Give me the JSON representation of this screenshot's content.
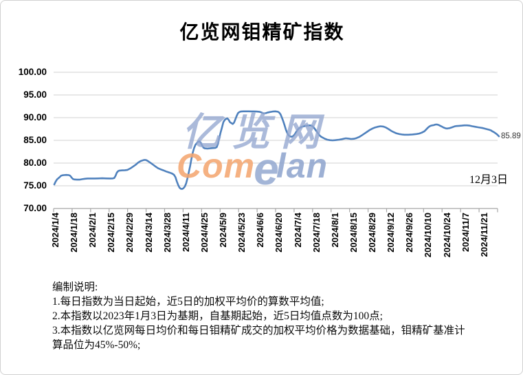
{
  "title": "亿览网钼精矿指数",
  "annotation": {
    "date_label": "12月3日"
  },
  "watermark": {
    "cjk": "亿览网",
    "com": "Com",
    "e": "e",
    "lan": "lan"
  },
  "notes": {
    "heading": "编制说明:",
    "lines": [
      "1.每日指数为当日起始，近5日的加权平均价的算数平均值;",
      "2.本指数以2023年1月3日为基期，自基期起始，近5日均值点数为100点;",
      "3.本指数以亿览网每日均价和每日钼精矿成交的加权平均价格为数据基础，钼精矿基准计算品位为45%-50%;"
    ]
  },
  "colors": {
    "line": "#4f81bd",
    "grid": "#d9d9d9",
    "axis": "#a6a6a6",
    "watermark_blue": "#93a7cf",
    "watermark_orange": "#f4a671"
  },
  "chart_data": {
    "type": "line",
    "title": "亿览网钼精矿指数",
    "xlabel": "",
    "ylabel": "",
    "ylim": [
      70,
      100
    ],
    "ytick_interval": 5,
    "ytick_labels": [
      "100.00",
      "95.00",
      "90.00",
      "85.00",
      "80.00",
      "75.00",
      "70.00"
    ],
    "xtick_labels": [
      "2024/1/4",
      "2024/1/18",
      "2024/2/1",
      "2024/2/15",
      "2024/2/29",
      "2024/3/14",
      "2024/3/28",
      "2024/4/11",
      "2024/4/25",
      "2024/5/9",
      "2024/5/23",
      "2024/6/6",
      "2024/6/20",
      "2024/7/4",
      "2024/7/18",
      "2024/8/1",
      "2024/8/15",
      "2024/8/29",
      "2024/9/12",
      "2024/9/26",
      "2024/10/10",
      "2024/10/24",
      "2024/11/7",
      "2024/11/21"
    ],
    "x_start": "2024/1/4",
    "x_end": "2024/12/3",
    "grid": true,
    "legend": "none",
    "end_label": "85.89",
    "end_value": 85.89,
    "end_date_label": "12月3日",
    "series": [
      {
        "name": "钼精矿指数",
        "color": "#4f81bd",
        "points": [
          [
            "2024/1/4",
            75.3
          ],
          [
            "2024/1/5",
            75.9
          ],
          [
            "2024/1/6",
            76.4
          ],
          [
            "2024/1/8",
            76.9
          ],
          [
            "2024/1/9",
            77.2
          ],
          [
            "2024/1/10",
            77.3
          ],
          [
            "2024/1/11",
            77.35
          ],
          [
            "2024/1/13",
            77.4
          ],
          [
            "2024/1/15",
            77.35
          ],
          [
            "2024/1/16",
            77.2
          ],
          [
            "2024/1/17",
            76.8
          ],
          [
            "2024/1/18",
            76.5
          ],
          [
            "2024/1/19",
            76.4
          ],
          [
            "2024/1/21",
            76.35
          ],
          [
            "2024/1/23",
            76.35
          ],
          [
            "2024/1/25",
            76.45
          ],
          [
            "2024/1/27",
            76.55
          ],
          [
            "2024/1/29",
            76.6
          ],
          [
            "2024/1/31",
            76.6
          ],
          [
            "2024/2/3",
            76.6
          ],
          [
            "2024/2/6",
            76.62
          ],
          [
            "2024/2/9",
            76.65
          ],
          [
            "2024/2/12",
            76.62
          ],
          [
            "2024/2/15",
            76.6
          ],
          [
            "2024/2/17",
            76.62
          ],
          [
            "2024/2/18",
            76.7
          ],
          [
            "2024/2/19",
            77.2
          ],
          [
            "2024/2/20",
            77.9
          ],
          [
            "2024/2/21",
            78.25
          ],
          [
            "2024/2/22",
            78.35
          ],
          [
            "2024/2/24",
            78.4
          ],
          [
            "2024/2/26",
            78.42
          ],
          [
            "2024/2/28",
            78.5
          ],
          [
            "2024/3/1",
            78.8
          ],
          [
            "2024/3/3",
            79.2
          ],
          [
            "2024/3/5",
            79.6
          ],
          [
            "2024/3/7",
            80.1
          ],
          [
            "2024/3/9",
            80.45
          ],
          [
            "2024/3/11",
            80.65
          ],
          [
            "2024/3/12",
            80.7
          ],
          [
            "2024/3/13",
            80.65
          ],
          [
            "2024/3/14",
            80.5
          ],
          [
            "2024/3/16",
            80.1
          ],
          [
            "2024/3/18",
            79.7
          ],
          [
            "2024/3/20",
            79.25
          ],
          [
            "2024/3/22",
            78.85
          ],
          [
            "2024/3/24",
            78.6
          ],
          [
            "2024/3/26",
            78.4
          ],
          [
            "2024/3/28",
            78.15
          ],
          [
            "2024/3/30",
            77.95
          ],
          [
            "2024/4/1",
            77.75
          ],
          [
            "2024/4/2",
            77.6
          ],
          [
            "2024/4/3",
            77.4
          ],
          [
            "2024/4/4",
            76.9
          ],
          [
            "2024/4/5",
            76.0
          ],
          [
            "2024/4/6",
            75.2
          ],
          [
            "2024/4/7",
            74.6
          ],
          [
            "2024/4/8",
            74.35
          ],
          [
            "2024/4/9",
            74.3
          ],
          [
            "2024/4/10",
            74.45
          ],
          [
            "2024/4/11",
            74.8
          ],
          [
            "2024/4/12",
            75.5
          ],
          [
            "2024/4/13",
            76.6
          ],
          [
            "2024/4/14",
            77.9
          ],
          [
            "2024/4/15",
            79.3
          ],
          [
            "2024/4/16",
            80.9
          ],
          [
            "2024/4/17",
            82.3
          ],
          [
            "2024/4/18",
            83.3
          ],
          [
            "2024/4/19",
            84.0
          ],
          [
            "2024/4/20",
            84.4
          ],
          [
            "2024/4/21",
            84.7
          ],
          [
            "2024/4/22",
            84.8
          ],
          [
            "2024/4/23",
            84.5
          ],
          [
            "2024/4/24",
            83.9
          ],
          [
            "2024/4/25",
            83.4
          ],
          [
            "2024/4/26",
            83.25
          ],
          [
            "2024/4/28",
            83.2
          ],
          [
            "2024/4/30",
            83.25
          ],
          [
            "2024/5/2",
            83.3
          ],
          [
            "2024/5/4",
            83.35
          ],
          [
            "2024/5/5",
            83.5
          ],
          [
            "2024/5/6",
            84.3
          ],
          [
            "2024/5/7",
            85.6
          ],
          [
            "2024/5/8",
            86.8
          ],
          [
            "2024/5/9",
            87.9
          ],
          [
            "2024/5/10",
            89.0
          ],
          [
            "2024/5/11",
            89.5
          ],
          [
            "2024/5/12",
            89.75
          ],
          [
            "2024/5/13",
            89.85
          ],
          [
            "2024/5/14",
            89.5
          ],
          [
            "2024/5/15",
            89.0
          ],
          [
            "2024/5/16",
            88.8
          ],
          [
            "2024/5/17",
            88.6
          ],
          [
            "2024/5/18",
            88.9
          ],
          [
            "2024/5/19",
            89.6
          ],
          [
            "2024/5/20",
            90.4
          ],
          [
            "2024/5/21",
            91.0
          ],
          [
            "2024/5/22",
            91.25
          ],
          [
            "2024/5/23",
            91.35
          ],
          [
            "2024/5/25",
            91.4
          ],
          [
            "2024/5/27",
            91.4
          ],
          [
            "2024/5/29",
            91.4
          ],
          [
            "2024/5/31",
            91.38
          ],
          [
            "2024/6/2",
            91.38
          ],
          [
            "2024/6/4",
            91.35
          ],
          [
            "2024/6/6",
            91.3
          ],
          [
            "2024/6/8",
            91.1
          ],
          [
            "2024/6/9",
            90.95
          ],
          [
            "2024/6/10",
            90.95
          ],
          [
            "2024/6/11",
            91.0
          ],
          [
            "2024/6/12",
            91.1
          ],
          [
            "2024/6/14",
            91.25
          ],
          [
            "2024/6/16",
            91.35
          ],
          [
            "2024/6/18",
            91.4
          ],
          [
            "2024/6/20",
            91.3
          ],
          [
            "2024/6/21",
            91.1
          ],
          [
            "2024/6/22",
            90.7
          ],
          [
            "2024/6/23",
            90.0
          ],
          [
            "2024/6/24",
            89.2
          ],
          [
            "2024/6/25",
            88.3
          ],
          [
            "2024/6/26",
            87.3
          ],
          [
            "2024/6/27",
            86.6
          ],
          [
            "2024/6/28",
            86.1
          ],
          [
            "2024/6/29",
            85.9
          ],
          [
            "2024/6/30",
            85.8
          ],
          [
            "2024/7/1",
            85.85
          ],
          [
            "2024/7/2",
            86.1
          ],
          [
            "2024/7/3",
            86.5
          ],
          [
            "2024/7/4",
            87.0
          ],
          [
            "2024/7/5",
            87.4
          ],
          [
            "2024/7/6",
            87.7
          ],
          [
            "2024/7/8",
            88.0
          ],
          [
            "2024/7/10",
            88.15
          ],
          [
            "2024/7/12",
            88.25
          ],
          [
            "2024/7/14",
            88.3
          ],
          [
            "2024/7/15",
            88.25
          ],
          [
            "2024/7/16",
            88.1
          ],
          [
            "2024/7/17",
            87.8
          ],
          [
            "2024/7/18",
            87.4
          ],
          [
            "2024/7/19",
            87.0
          ],
          [
            "2024/7/20",
            86.6
          ],
          [
            "2024/7/21",
            86.2
          ],
          [
            "2024/7/22",
            85.9
          ],
          [
            "2024/7/23",
            85.7
          ],
          [
            "2024/7/25",
            85.4
          ],
          [
            "2024/7/27",
            85.15
          ],
          [
            "2024/7/29",
            85.05
          ],
          [
            "2024/7/31",
            85.0
          ],
          [
            "2024/8/2",
            85.05
          ],
          [
            "2024/8/5",
            85.15
          ],
          [
            "2024/8/7",
            85.25
          ],
          [
            "2024/8/9",
            85.4
          ],
          [
            "2024/8/10",
            85.45
          ],
          [
            "2024/8/12",
            85.4
          ],
          [
            "2024/8/14",
            85.3
          ],
          [
            "2024/8/16",
            85.35
          ],
          [
            "2024/8/18",
            85.5
          ],
          [
            "2024/8/20",
            85.75
          ],
          [
            "2024/8/22",
            86.1
          ],
          [
            "2024/8/24",
            86.5
          ],
          [
            "2024/8/26",
            86.9
          ],
          [
            "2024/8/28",
            87.3
          ],
          [
            "2024/8/30",
            87.6
          ],
          [
            "2024/9/1",
            87.85
          ],
          [
            "2024/9/3",
            88.0
          ],
          [
            "2024/9/5",
            88.1
          ],
          [
            "2024/9/7",
            88.05
          ],
          [
            "2024/9/9",
            87.85
          ],
          [
            "2024/9/11",
            87.5
          ],
          [
            "2024/9/13",
            87.1
          ],
          [
            "2024/9/15",
            86.8
          ],
          [
            "2024/9/17",
            86.55
          ],
          [
            "2024/9/19",
            86.4
          ],
          [
            "2024/9/21",
            86.3
          ],
          [
            "2024/9/23",
            86.25
          ],
          [
            "2024/9/26",
            86.25
          ],
          [
            "2024/9/29",
            86.3
          ],
          [
            "2024/10/2",
            86.4
          ],
          [
            "2024/10/4",
            86.5
          ],
          [
            "2024/10/6",
            86.7
          ],
          [
            "2024/10/8",
            87.0
          ],
          [
            "2024/10/9",
            87.3
          ],
          [
            "2024/10/10",
            87.6
          ],
          [
            "2024/10/11",
            87.9
          ],
          [
            "2024/10/12",
            88.1
          ],
          [
            "2024/10/13",
            88.25
          ],
          [
            "2024/10/14",
            88.3
          ],
          [
            "2024/10/15",
            88.35
          ],
          [
            "2024/10/16",
            88.45
          ],
          [
            "2024/10/17",
            88.5
          ],
          [
            "2024/10/18",
            88.45
          ],
          [
            "2024/10/19",
            88.35
          ],
          [
            "2024/10/20",
            88.2
          ],
          [
            "2024/10/21",
            88.05
          ],
          [
            "2024/10/22",
            87.9
          ],
          [
            "2024/10/23",
            87.75
          ],
          [
            "2024/10/24",
            87.65
          ],
          [
            "2024/10/25",
            87.6
          ],
          [
            "2024/10/26",
            87.65
          ],
          [
            "2024/10/27",
            87.7
          ],
          [
            "2024/10/28",
            87.8
          ],
          [
            "2024/10/29",
            87.9
          ],
          [
            "2024/10/30",
            88.0
          ],
          [
            "2024/10/31",
            88.1
          ],
          [
            "2024/11/1",
            88.15
          ],
          [
            "2024/11/3",
            88.2
          ],
          [
            "2024/11/5",
            88.25
          ],
          [
            "2024/11/7",
            88.3
          ],
          [
            "2024/11/9",
            88.3
          ],
          [
            "2024/11/11",
            88.25
          ],
          [
            "2024/11/13",
            88.1
          ],
          [
            "2024/11/15",
            88.0
          ],
          [
            "2024/11/17",
            87.9
          ],
          [
            "2024/11/19",
            87.8
          ],
          [
            "2024/11/21",
            87.7
          ],
          [
            "2024/11/23",
            87.55
          ],
          [
            "2024/11/25",
            87.4
          ],
          [
            "2024/11/26",
            87.3
          ],
          [
            "2024/11/27",
            87.2
          ],
          [
            "2024/11/28",
            87.0
          ],
          [
            "2024/11/29",
            86.85
          ],
          [
            "2024/11/30",
            86.65
          ],
          [
            "2024/12/1",
            86.45
          ],
          [
            "2024/12/2",
            86.2
          ],
          [
            "2024/12/3",
            85.89
          ]
        ]
      }
    ]
  }
}
